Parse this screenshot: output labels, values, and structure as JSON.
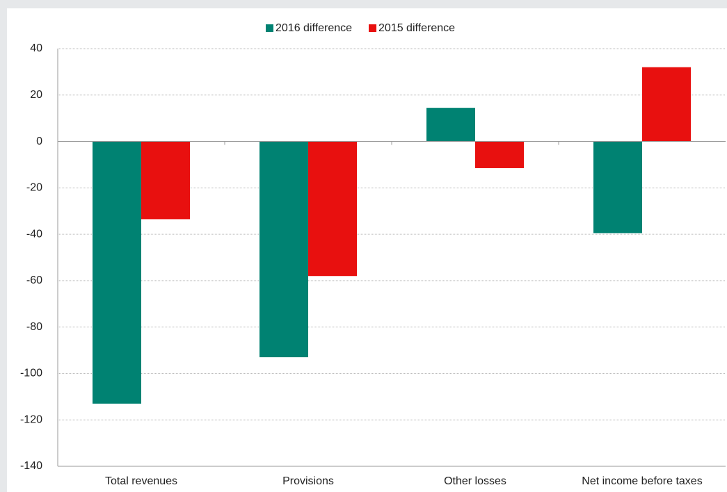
{
  "chart_data": {
    "type": "bar",
    "categories": [
      "Total revenues",
      "Provisions",
      "Other losses",
      "Net income before taxes"
    ],
    "series": [
      {
        "name": "2016 difference",
        "color": "#008272",
        "values": [
          -113,
          -93,
          14.5,
          -39.5
        ]
      },
      {
        "name": "2015 difference",
        "color": "#e8100f",
        "values": [
          -33.5,
          -58,
          -11.5,
          32
        ]
      }
    ],
    "ylim": [
      -140,
      40
    ],
    "yticks": [
      -140,
      -120,
      -100,
      -80,
      -60,
      -40,
      -20,
      0,
      20,
      40
    ],
    "grid": true,
    "legend": "top"
  }
}
